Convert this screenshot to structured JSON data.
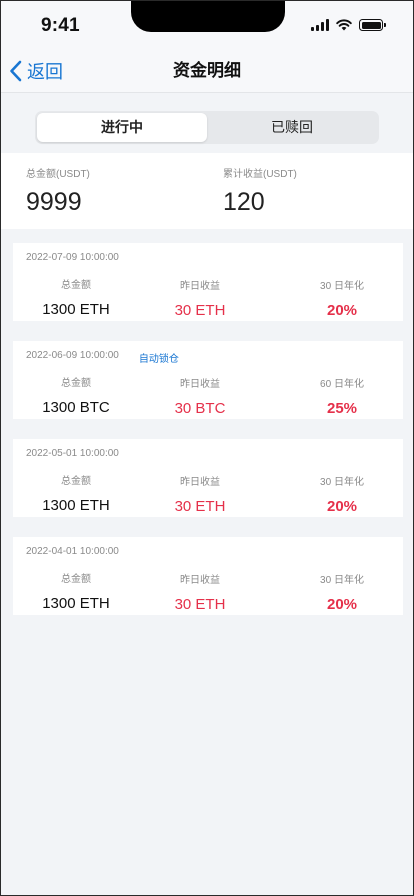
{
  "status_bar": {
    "time": "9:41"
  },
  "nav": {
    "back_label": "返回",
    "title": "资金明细"
  },
  "tabs": [
    {
      "label": "进行中",
      "active": true
    },
    {
      "label": "已赎回",
      "active": false
    }
  ],
  "summary": {
    "total_label": "总金额(USDT)",
    "total_value": "9999",
    "earnings_label": "累计收益(USDT)",
    "earnings_value": "120"
  },
  "records": [
    {
      "date": "2022-07-09 10:00:00",
      "tag": "",
      "total_label": "总金额",
      "total_value": "1300 ETH",
      "yesterday_label": "昨日收益",
      "yesterday_value": "30 ETH",
      "rate_label": "30 日年化",
      "rate_value": "20%"
    },
    {
      "date": "2022-06-09 10:00:00",
      "tag": "自动锁仓",
      "total_label": "总金额",
      "total_value": "1300 BTC",
      "yesterday_label": "昨日收益",
      "yesterday_value": "30 BTC",
      "rate_label": "60 日年化",
      "rate_value": "25%"
    },
    {
      "date": "2022-05-01 10:00:00",
      "tag": "",
      "total_label": "总金额",
      "total_value": "1300 ETH",
      "yesterday_label": "昨日收益",
      "yesterday_value": "30 ETH",
      "rate_label": "30 日年化",
      "rate_value": "20%"
    },
    {
      "date": "2022-04-01 10:00:00",
      "tag": "",
      "total_label": "总金额",
      "total_value": "1300 ETH",
      "yesterday_label": "昨日收益",
      "yesterday_value": "30 ETH",
      "rate_label": "30 日年化",
      "rate_value": "20%"
    }
  ],
  "colors": {
    "accent": "#1976d2",
    "profit_red": "#e5304a",
    "background": "#f2f4f7"
  },
  "icons": {
    "back": "chevron-left-icon",
    "signal": "cellular-signal-icon",
    "wifi": "wifi-icon",
    "battery": "battery-icon"
  }
}
